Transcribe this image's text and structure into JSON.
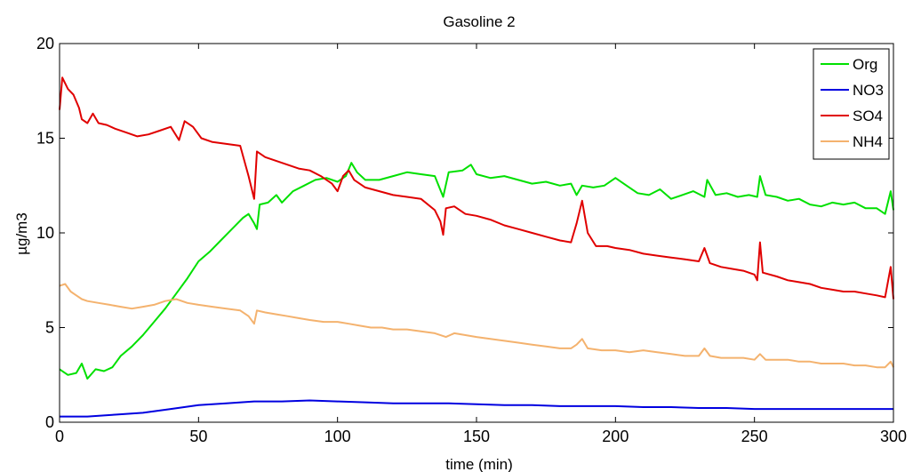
{
  "chart_data": {
    "type": "line",
    "title": "Gasoline 2",
    "xlabel": "time (min)",
    "ylabel": "µg/m3",
    "xlim": [
      0,
      300
    ],
    "ylim": [
      0,
      20
    ],
    "xticks": [
      0,
      50,
      100,
      150,
      200,
      250,
      300
    ],
    "yticks": [
      0,
      5,
      10,
      15,
      20
    ],
    "grid": false,
    "legend_position": "top-right",
    "series": [
      {
        "name": "Org",
        "color": "#00e000",
        "points": [
          [
            0,
            2.8
          ],
          [
            3,
            2.5
          ],
          [
            6,
            2.6
          ],
          [
            8,
            3.1
          ],
          [
            10,
            2.3
          ],
          [
            13,
            2.8
          ],
          [
            16,
            2.7
          ],
          [
            19,
            2.9
          ],
          [
            22,
            3.5
          ],
          [
            26,
            4.0
          ],
          [
            30,
            4.6
          ],
          [
            34,
            5.3
          ],
          [
            38,
            6.0
          ],
          [
            42,
            6.8
          ],
          [
            46,
            7.6
          ],
          [
            50,
            8.5
          ],
          [
            54,
            9.0
          ],
          [
            58,
            9.6
          ],
          [
            62,
            10.2
          ],
          [
            66,
            10.8
          ],
          [
            68,
            11.0
          ],
          [
            70,
            10.5
          ],
          [
            71,
            10.2
          ],
          [
            72,
            11.5
          ],
          [
            75,
            11.6
          ],
          [
            78,
            12.0
          ],
          [
            80,
            11.6
          ],
          [
            84,
            12.2
          ],
          [
            88,
            12.5
          ],
          [
            92,
            12.8
          ],
          [
            96,
            12.9
          ],
          [
            100,
            12.7
          ],
          [
            103,
            13.0
          ],
          [
            105,
            13.7
          ],
          [
            107,
            13.2
          ],
          [
            110,
            12.8
          ],
          [
            115,
            12.8
          ],
          [
            120,
            13.0
          ],
          [
            125,
            13.2
          ],
          [
            130,
            13.1
          ],
          [
            135,
            13.0
          ],
          [
            138,
            11.9
          ],
          [
            140,
            13.2
          ],
          [
            145,
            13.3
          ],
          [
            148,
            13.6
          ],
          [
            150,
            13.1
          ],
          [
            155,
            12.9
          ],
          [
            160,
            13.0
          ],
          [
            165,
            12.8
          ],
          [
            170,
            12.6
          ],
          [
            175,
            12.7
          ],
          [
            180,
            12.5
          ],
          [
            184,
            12.6
          ],
          [
            186,
            12.0
          ],
          [
            188,
            12.5
          ],
          [
            192,
            12.4
          ],
          [
            196,
            12.5
          ],
          [
            200,
            12.9
          ],
          [
            204,
            12.5
          ],
          [
            208,
            12.1
          ],
          [
            212,
            12.0
          ],
          [
            216,
            12.3
          ],
          [
            220,
            11.8
          ],
          [
            224,
            12.0
          ],
          [
            228,
            12.2
          ],
          [
            232,
            11.9
          ],
          [
            233,
            12.8
          ],
          [
            236,
            12.0
          ],
          [
            240,
            12.1
          ],
          [
            244,
            11.9
          ],
          [
            248,
            12.0
          ],
          [
            251,
            11.9
          ],
          [
            252,
            13.0
          ],
          [
            254,
            12.0
          ],
          [
            258,
            11.9
          ],
          [
            262,
            11.7
          ],
          [
            266,
            11.8
          ],
          [
            270,
            11.5
          ],
          [
            274,
            11.4
          ],
          [
            278,
            11.6
          ],
          [
            282,
            11.5
          ],
          [
            286,
            11.6
          ],
          [
            290,
            11.3
          ],
          [
            294,
            11.3
          ],
          [
            297,
            11.0
          ],
          [
            299,
            12.2
          ],
          [
            300,
            11.2
          ]
        ]
      },
      {
        "name": "NO3",
        "color": "#0000e0",
        "points": [
          [
            0,
            0.3
          ],
          [
            10,
            0.3
          ],
          [
            20,
            0.4
          ],
          [
            30,
            0.5
          ],
          [
            40,
            0.7
          ],
          [
            50,
            0.9
          ],
          [
            60,
            1.0
          ],
          [
            70,
            1.1
          ],
          [
            80,
            1.1
          ],
          [
            90,
            1.15
          ],
          [
            100,
            1.1
          ],
          [
            110,
            1.05
          ],
          [
            120,
            1.0
          ],
          [
            130,
            1.0
          ],
          [
            140,
            1.0
          ],
          [
            150,
            0.95
          ],
          [
            160,
            0.9
          ],
          [
            170,
            0.9
          ],
          [
            180,
            0.85
          ],
          [
            190,
            0.85
          ],
          [
            200,
            0.85
          ],
          [
            210,
            0.8
          ],
          [
            220,
            0.8
          ],
          [
            230,
            0.75
          ],
          [
            240,
            0.75
          ],
          [
            250,
            0.7
          ],
          [
            260,
            0.7
          ],
          [
            270,
            0.7
          ],
          [
            280,
            0.7
          ],
          [
            290,
            0.7
          ],
          [
            300,
            0.7
          ]
        ]
      },
      {
        "name": "SO4",
        "color": "#e00000",
        "points": [
          [
            0,
            16.5
          ],
          [
            1,
            18.2
          ],
          [
            3,
            17.6
          ],
          [
            5,
            17.3
          ],
          [
            7,
            16.6
          ],
          [
            8,
            16.0
          ],
          [
            10,
            15.8
          ],
          [
            12,
            16.3
          ],
          [
            14,
            15.8
          ],
          [
            17,
            15.7
          ],
          [
            20,
            15.5
          ],
          [
            24,
            15.3
          ],
          [
            28,
            15.1
          ],
          [
            32,
            15.2
          ],
          [
            36,
            15.4
          ],
          [
            40,
            15.6
          ],
          [
            43,
            14.9
          ],
          [
            45,
            15.9
          ],
          [
            48,
            15.6
          ],
          [
            51,
            15.0
          ],
          [
            55,
            14.8
          ],
          [
            60,
            14.7
          ],
          [
            65,
            14.6
          ],
          [
            68,
            13.0
          ],
          [
            70,
            11.8
          ],
          [
            71,
            14.3
          ],
          [
            74,
            14.0
          ],
          [
            78,
            13.8
          ],
          [
            82,
            13.6
          ],
          [
            86,
            13.4
          ],
          [
            90,
            13.3
          ],
          [
            94,
            13.0
          ],
          [
            98,
            12.6
          ],
          [
            100,
            12.2
          ],
          [
            102,
            13.0
          ],
          [
            104,
            13.3
          ],
          [
            106,
            12.8
          ],
          [
            110,
            12.4
          ],
          [
            115,
            12.2
          ],
          [
            120,
            12.0
          ],
          [
            125,
            11.9
          ],
          [
            130,
            11.8
          ],
          [
            135,
            11.2
          ],
          [
            137,
            10.6
          ],
          [
            138,
            9.9
          ],
          [
            139,
            11.3
          ],
          [
            142,
            11.4
          ],
          [
            146,
            11.0
          ],
          [
            150,
            10.9
          ],
          [
            155,
            10.7
          ],
          [
            160,
            10.4
          ],
          [
            165,
            10.2
          ],
          [
            170,
            10.0
          ],
          [
            175,
            9.8
          ],
          [
            180,
            9.6
          ],
          [
            184,
            9.5
          ],
          [
            186,
            10.5
          ],
          [
            188,
            11.7
          ],
          [
            190,
            10.0
          ],
          [
            193,
            9.3
          ],
          [
            197,
            9.3
          ],
          [
            200,
            9.2
          ],
          [
            205,
            9.1
          ],
          [
            210,
            8.9
          ],
          [
            215,
            8.8
          ],
          [
            220,
            8.7
          ],
          [
            225,
            8.6
          ],
          [
            230,
            8.5
          ],
          [
            232,
            9.2
          ],
          [
            234,
            8.4
          ],
          [
            238,
            8.2
          ],
          [
            242,
            8.1
          ],
          [
            246,
            8.0
          ],
          [
            250,
            7.8
          ],
          [
            251,
            7.5
          ],
          [
            252,
            9.5
          ],
          [
            253,
            7.9
          ],
          [
            258,
            7.7
          ],
          [
            262,
            7.5
          ],
          [
            266,
            7.4
          ],
          [
            270,
            7.3
          ],
          [
            274,
            7.1
          ],
          [
            278,
            7.0
          ],
          [
            282,
            6.9
          ],
          [
            286,
            6.9
          ],
          [
            290,
            6.8
          ],
          [
            294,
            6.7
          ],
          [
            297,
            6.6
          ],
          [
            299,
            8.2
          ],
          [
            300,
            6.5
          ]
        ]
      },
      {
        "name": "NH4",
        "color": "#f4b26e",
        "points": [
          [
            0,
            7.2
          ],
          [
            2,
            7.3
          ],
          [
            4,
            6.9
          ],
          [
            6,
            6.7
          ],
          [
            8,
            6.5
          ],
          [
            10,
            6.4
          ],
          [
            14,
            6.3
          ],
          [
            18,
            6.2
          ],
          [
            22,
            6.1
          ],
          [
            26,
            6.0
          ],
          [
            30,
            6.1
          ],
          [
            34,
            6.2
          ],
          [
            38,
            6.4
          ],
          [
            42,
            6.5
          ],
          [
            46,
            6.3
          ],
          [
            50,
            6.2
          ],
          [
            55,
            6.1
          ],
          [
            60,
            6.0
          ],
          [
            65,
            5.9
          ],
          [
            68,
            5.6
          ],
          [
            70,
            5.2
          ],
          [
            71,
            5.9
          ],
          [
            74,
            5.8
          ],
          [
            78,
            5.7
          ],
          [
            82,
            5.6
          ],
          [
            86,
            5.5
          ],
          [
            90,
            5.4
          ],
          [
            95,
            5.3
          ],
          [
            100,
            5.3
          ],
          [
            104,
            5.2
          ],
          [
            108,
            5.1
          ],
          [
            112,
            5.0
          ],
          [
            116,
            5.0
          ],
          [
            120,
            4.9
          ],
          [
            125,
            4.9
          ],
          [
            130,
            4.8
          ],
          [
            135,
            4.7
          ],
          [
            139,
            4.5
          ],
          [
            142,
            4.7
          ],
          [
            146,
            4.6
          ],
          [
            150,
            4.5
          ],
          [
            155,
            4.4
          ],
          [
            160,
            4.3
          ],
          [
            165,
            4.2
          ],
          [
            170,
            4.1
          ],
          [
            175,
            4.0
          ],
          [
            180,
            3.9
          ],
          [
            184,
            3.9
          ],
          [
            186,
            4.1
          ],
          [
            188,
            4.4
          ],
          [
            190,
            3.9
          ],
          [
            195,
            3.8
          ],
          [
            200,
            3.8
          ],
          [
            205,
            3.7
          ],
          [
            210,
            3.8
          ],
          [
            215,
            3.7
          ],
          [
            220,
            3.6
          ],
          [
            225,
            3.5
          ],
          [
            230,
            3.5
          ],
          [
            232,
            3.9
          ],
          [
            234,
            3.5
          ],
          [
            238,
            3.4
          ],
          [
            242,
            3.4
          ],
          [
            246,
            3.4
          ],
          [
            250,
            3.3
          ],
          [
            252,
            3.6
          ],
          [
            254,
            3.3
          ],
          [
            258,
            3.3
          ],
          [
            262,
            3.3
          ],
          [
            266,
            3.2
          ],
          [
            270,
            3.2
          ],
          [
            274,
            3.1
          ],
          [
            278,
            3.1
          ],
          [
            282,
            3.1
          ],
          [
            286,
            3.0
          ],
          [
            290,
            3.0
          ],
          [
            294,
            2.9
          ],
          [
            297,
            2.9
          ],
          [
            299,
            3.2
          ],
          [
            300,
            2.9
          ]
        ]
      }
    ]
  }
}
